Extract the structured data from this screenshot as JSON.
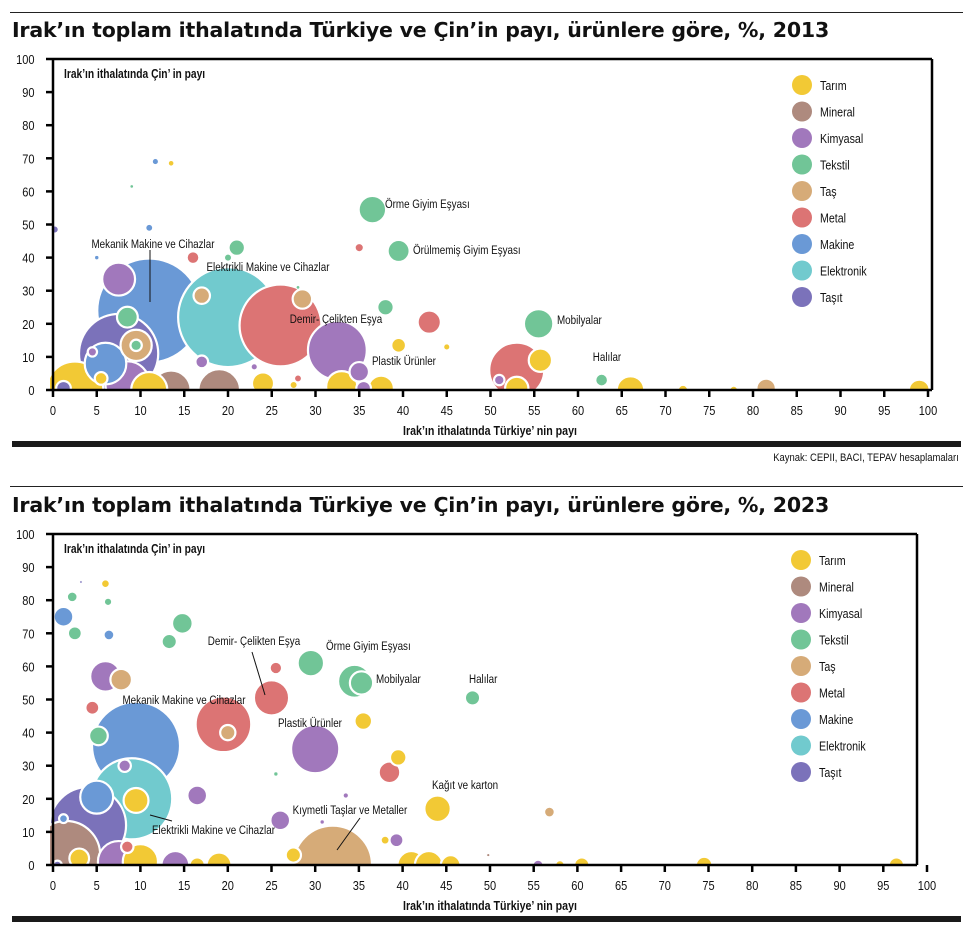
{
  "categories": [
    {
      "name": "Tarım",
      "color": "#F2C935"
    },
    {
      "name": "Mineral",
      "color": "#AE8A7E"
    },
    {
      "name": "Kimyasal",
      "color": "#A178BC"
    },
    {
      "name": "Tekstil",
      "color": "#71C597"
    },
    {
      "name": "Taş",
      "color": "#D6AB78"
    },
    {
      "name": "Metal",
      "color": "#DC7474"
    },
    {
      "name": "Makine",
      "color": "#6A99D6"
    },
    {
      "name": "Elektronik",
      "color": "#71CACE"
    },
    {
      "name": "Taşıt",
      "color": "#7B72BA"
    }
  ],
  "source": "Kaynak: CEPII, BACI, TEPAV hesaplamaları",
  "chart_data": [
    {
      "type": "scatter",
      "title": "Irak’ın toplam ithalatında Türkiye ve Çin’in payı, ürünlere göre, %, 2013",
      "xlabel": "Irak’ın ithalatında Türkiye’ nin payı",
      "ylabel": "Irak’ın ithalatında Çin’ in payı",
      "xlim": [
        0,
        100
      ],
      "ylim": [
        0,
        100
      ],
      "xticks": [
        "0",
        "5",
        "10",
        "15",
        "20",
        "25",
        "30",
        "35",
        "40",
        "45",
        "50",
        "55",
        "60",
        "65",
        "70",
        "75",
        "80",
        "85",
        "90",
        "95",
        "100"
      ],
      "yticks": [
        "0",
        "10",
        "20",
        "30",
        "40",
        "50",
        "60",
        "70",
        "80",
        "90",
        "100"
      ],
      "grid": false,
      "legend": "top-right",
      "size_note": "bubble size proportional to import value (relative units)",
      "points": [
        {
          "x": 11,
          "y": 24,
          "size": 100,
          "cat": "Makine"
        },
        {
          "x": 20,
          "y": 22,
          "size": 92,
          "cat": "Elektronik"
        },
        {
          "x": 26,
          "y": 19.5,
          "size": 62,
          "cat": "Metal"
        },
        {
          "x": 7.5,
          "y": 11,
          "size": 58,
          "cat": "Taşıt"
        },
        {
          "x": 32.5,
          "y": 12,
          "size": 32,
          "cat": "Kimyasal"
        },
        {
          "x": 53,
          "y": 6,
          "size": 28,
          "cat": "Metal"
        },
        {
          "x": 6,
          "y": 8,
          "size": 16,
          "cat": "Makine"
        },
        {
          "x": 9.5,
          "y": 13.5,
          "size": 9,
          "cat": "Taş"
        },
        {
          "x": 9.5,
          "y": 13.5,
          "size": 1.2,
          "cat": "Tekstil"
        },
        {
          "x": 7.5,
          "y": 33.5,
          "size": 10,
          "cat": "Kimyasal"
        },
        {
          "x": 8.5,
          "y": 22,
          "size": 4,
          "cat": "Tekstil"
        },
        {
          "x": 8.5,
          "y": 2,
          "size": 18,
          "cat": "Kimyasal"
        },
        {
          "x": 2.5,
          "y": 0,
          "size": 30,
          "cat": "Tarım"
        },
        {
          "x": 11,
          "y": 0,
          "size": 12,
          "cat": "Tarım"
        },
        {
          "x": 13.5,
          "y": 0,
          "size": 14,
          "cat": "Mineral"
        },
        {
          "x": 19,
          "y": 0,
          "size": 16,
          "cat": "Mineral"
        },
        {
          "x": 24,
          "y": 2,
          "size": 4.5,
          "cat": "Tarım"
        },
        {
          "x": 5.5,
          "y": 3.5,
          "size": 1.5,
          "cat": "Tarım"
        },
        {
          "x": 1.2,
          "y": 0.5,
          "size": 2,
          "cat": "Taşıt"
        },
        {
          "x": 4.5,
          "y": 11.5,
          "size": 0.8,
          "cat": "Kimyasal"
        },
        {
          "x": 36.5,
          "y": 54.5,
          "size": 7,
          "cat": "Tekstil"
        },
        {
          "x": 39.5,
          "y": 42,
          "size": 4.5,
          "cat": "Tekstil"
        },
        {
          "x": 55.5,
          "y": 20,
          "size": 8,
          "cat": "Tekstil"
        },
        {
          "x": 55.7,
          "y": 9,
          "size": 5,
          "cat": "Tarım"
        },
        {
          "x": 43,
          "y": 20.5,
          "size": 5,
          "cat": "Metal"
        },
        {
          "x": 39.5,
          "y": 13.5,
          "size": 2,
          "cat": "Tarım"
        },
        {
          "x": 45,
          "y": 13,
          "size": 0.3,
          "cat": "Tarım"
        },
        {
          "x": 38,
          "y": 25,
          "size": 2.5,
          "cat": "Tekstil"
        },
        {
          "x": 35,
          "y": 43,
          "size": 0.8,
          "cat": "Metal"
        },
        {
          "x": 21,
          "y": 43,
          "size": 2.5,
          "cat": "Tekstil"
        },
        {
          "x": 20,
          "y": 40,
          "size": 0.4,
          "cat": "Tekstil"
        },
        {
          "x": 16,
          "y": 40,
          "size": 1.5,
          "cat": "Metal"
        },
        {
          "x": 17,
          "y": 28.5,
          "size": 2.5,
          "cat": "Taş"
        },
        {
          "x": 28.5,
          "y": 27.5,
          "size": 3.5,
          "cat": "Taş"
        },
        {
          "x": 28,
          "y": 31,
          "size": 0.1,
          "cat": "Tekstil"
        },
        {
          "x": 17,
          "y": 8.5,
          "size": 1.5,
          "cat": "Kimyasal"
        },
        {
          "x": 23,
          "y": 7,
          "size": 0.3,
          "cat": "Kimyasal"
        },
        {
          "x": 28,
          "y": 3.5,
          "size": 0.6,
          "cat": "Metal"
        },
        {
          "x": 27.5,
          "y": 1.5,
          "size": 0.4,
          "cat": "Tarım"
        },
        {
          "x": 35,
          "y": 5.5,
          "size": 3.5,
          "cat": "Kimyasal"
        },
        {
          "x": 33,
          "y": 1,
          "size": 9,
          "cat": "Tarım"
        },
        {
          "x": 37.5,
          "y": 0.5,
          "size": 6,
          "cat": "Tarım"
        },
        {
          "x": 35.5,
          "y": 0.5,
          "size": 2,
          "cat": "Kimyasal"
        },
        {
          "x": 51,
          "y": 3,
          "size": 1,
          "cat": "Kimyasal"
        },
        {
          "x": 53,
          "y": 0.5,
          "size": 5,
          "cat": "Tarım"
        },
        {
          "x": 62.7,
          "y": 3,
          "size": 1.5,
          "cat": "Tekstil"
        },
        {
          "x": 66,
          "y": 0,
          "size": 7,
          "cat": "Tarım"
        },
        {
          "x": 72,
          "y": 0,
          "size": 1,
          "cat": "Tarım"
        },
        {
          "x": 77.8,
          "y": 0,
          "size": 0.7,
          "cat": "Tarım"
        },
        {
          "x": 81.5,
          "y": 0.5,
          "size": 3.5,
          "cat": "Taş"
        },
        {
          "x": 99,
          "y": 0,
          "size": 4,
          "cat": "Tarım"
        },
        {
          "x": 0.2,
          "y": 48.5,
          "size": 0.4,
          "cat": "Taşıt"
        },
        {
          "x": 11,
          "y": 49,
          "size": 0.6,
          "cat": "Makine"
        },
        {
          "x": 5,
          "y": 40,
          "size": 0.15,
          "cat": "Makine"
        },
        {
          "x": 11.7,
          "y": 69,
          "size": 0.3,
          "cat": "Makine"
        },
        {
          "x": 13.5,
          "y": 68.5,
          "size": 0.25,
          "cat": "Tarım"
        },
        {
          "x": 9,
          "y": 61.5,
          "size": 0.1,
          "cat": "Tekstil"
        }
      ],
      "annotations": [
        {
          "text": "Mekanik Makine ve Cihazlar",
          "x": 11,
          "y": 24
        },
        {
          "text": "Elektrikli Makine ve Cihazlar",
          "x": 20,
          "y": 22
        },
        {
          "text": "Demir- Çelikten Eşya",
          "x": 26,
          "y": 19.5
        },
        {
          "text": "Örme Giyim Eşyası",
          "x": 36.5,
          "y": 54.5
        },
        {
          "text": "Örülmemiş Giyim Eşyası",
          "x": 39.5,
          "y": 42
        },
        {
          "text": "Plastik Ürünler",
          "x": 35,
          "y": 5.5
        },
        {
          "text": "Mobilyalar",
          "x": 55.5,
          "y": 20
        },
        {
          "text": "Halılar",
          "x": 62.7,
          "y": 3
        }
      ]
    },
    {
      "type": "scatter",
      "title": "Irak’ın toplam ithalatında Türkiye ve Çin’in payı, ürünlere göre, %, 2023",
      "xlabel": "Irak’ın ithalatında Türkiye’ nin payı",
      "ylabel": "Irak’ın ithalatında Çin’ in payı",
      "xlim": [
        0,
        100
      ],
      "ylim": [
        0,
        100
      ],
      "xticks": [
        "0",
        "5",
        "10",
        "15",
        "20",
        "25",
        "30",
        "35",
        "40",
        "45",
        "50",
        "55",
        "60",
        "65",
        "70",
        "75",
        "80",
        "85",
        "90",
        "95",
        "100"
      ],
      "yticks": [
        "0",
        "10",
        "20",
        "30",
        "40",
        "50",
        "60",
        "70",
        "80",
        "90",
        "100"
      ],
      "grid": false,
      "legend": "top-right",
      "size_note": "bubble size proportional to import value (relative units)",
      "points": [
        {
          "x": 9.5,
          "y": 36,
          "size": 100,
          "cat": "Makine"
        },
        {
          "x": 9,
          "y": 20,
          "size": 85,
          "cat": "Elektronik"
        },
        {
          "x": 4,
          "y": 12,
          "size": 75,
          "cat": "Taşıt"
        },
        {
          "x": 1.5,
          "y": 3,
          "size": 60,
          "cat": "Mineral"
        },
        {
          "x": 32,
          "y": 0,
          "size": 80,
          "cat": "Taş"
        },
        {
          "x": 19.5,
          "y": 42.5,
          "size": 40,
          "cat": "Metal"
        },
        {
          "x": 30,
          "y": 35,
          "size": 30,
          "cat": "Kimyasal"
        },
        {
          "x": 25,
          "y": 50.5,
          "size": 16,
          "cat": "Metal"
        },
        {
          "x": 20,
          "y": 40,
          "size": 3,
          "cat": "Taş"
        },
        {
          "x": 5,
          "y": 20.5,
          "size": 14,
          "cat": "Makine"
        },
        {
          "x": 9.5,
          "y": 19.5,
          "size": 8,
          "cat": "Tarım"
        },
        {
          "x": 8.2,
          "y": 30,
          "size": 2,
          "cat": "Kimyasal"
        },
        {
          "x": 7.5,
          "y": 1,
          "size": 22,
          "cat": "Kimyasal"
        },
        {
          "x": 10,
          "y": 1,
          "size": 16,
          "cat": "Tarım"
        },
        {
          "x": 14,
          "y": 0,
          "size": 10,
          "cat": "Kimyasal"
        },
        {
          "x": 16.5,
          "y": 21,
          "size": 5,
          "cat": "Kimyasal"
        },
        {
          "x": 19,
          "y": 0,
          "size": 8,
          "cat": "Tarım"
        },
        {
          "x": 16.5,
          "y": 0,
          "size": 3,
          "cat": "Tarım"
        },
        {
          "x": 8.5,
          "y": 5.5,
          "size": 2,
          "cat": "Metal"
        },
        {
          "x": 1.2,
          "y": 14,
          "size": 1,
          "cat": "Makine"
        },
        {
          "x": 3,
          "y": 2,
          "size": 5,
          "cat": "Tarım"
        },
        {
          "x": 0.5,
          "y": 0,
          "size": 1,
          "cat": "Taşıt"
        },
        {
          "x": 6,
          "y": 57,
          "size": 12,
          "cat": "Kimyasal"
        },
        {
          "x": 7.8,
          "y": 56,
          "size": 6,
          "cat": "Taş"
        },
        {
          "x": 5.2,
          "y": 39,
          "size": 4.5,
          "cat": "Tekstil"
        },
        {
          "x": 4.5,
          "y": 47.5,
          "size": 2.5,
          "cat": "Metal"
        },
        {
          "x": 1.2,
          "y": 75,
          "size": 5,
          "cat": "Makine"
        },
        {
          "x": 2.5,
          "y": 70,
          "size": 2.5,
          "cat": "Tekstil"
        },
        {
          "x": 2.2,
          "y": 81,
          "size": 1.5,
          "cat": "Tekstil"
        },
        {
          "x": 6,
          "y": 85,
          "size": 1,
          "cat": "Tarım"
        },
        {
          "x": 6.3,
          "y": 79.5,
          "size": 0.6,
          "cat": "Tekstil"
        },
        {
          "x": 6.4,
          "y": 69.5,
          "size": 1.5,
          "cat": "Makine"
        },
        {
          "x": 3.2,
          "y": 85.5,
          "size": 0.05,
          "cat": "Taşıt"
        },
        {
          "x": 14.8,
          "y": 73,
          "size": 5.5,
          "cat": "Tekstil"
        },
        {
          "x": 13.3,
          "y": 67.5,
          "size": 3,
          "cat": "Tekstil"
        },
        {
          "x": 25.5,
          "y": 59.5,
          "size": 2,
          "cat": "Metal"
        },
        {
          "x": 29.5,
          "y": 61,
          "size": 9,
          "cat": "Tekstil"
        },
        {
          "x": 34.5,
          "y": 55.5,
          "size": 14,
          "cat": "Tekstil"
        },
        {
          "x": 35.3,
          "y": 55,
          "size": 7,
          "cat": "Tekstil"
        },
        {
          "x": 35.5,
          "y": 43.5,
          "size": 4,
          "cat": "Tarım"
        },
        {
          "x": 48,
          "y": 50.5,
          "size": 3,
          "cat": "Tekstil"
        },
        {
          "x": 38.5,
          "y": 28,
          "size": 6,
          "cat": "Metal"
        },
        {
          "x": 39.5,
          "y": 32.5,
          "size": 3.5,
          "cat": "Tarım"
        },
        {
          "x": 44,
          "y": 17,
          "size": 9,
          "cat": "Tarım"
        },
        {
          "x": 25.5,
          "y": 27.5,
          "size": 0.2,
          "cat": "Tekstil"
        },
        {
          "x": 26,
          "y": 13.5,
          "size": 5,
          "cat": "Kimyasal"
        },
        {
          "x": 33.5,
          "y": 21,
          "size": 0.3,
          "cat": "Kimyasal"
        },
        {
          "x": 30.8,
          "y": 13,
          "size": 0.2,
          "cat": "Kimyasal"
        },
        {
          "x": 38,
          "y": 7.5,
          "size": 0.7,
          "cat": "Tarım"
        },
        {
          "x": 39.3,
          "y": 7.5,
          "size": 2.5,
          "cat": "Kimyasal"
        },
        {
          "x": 27.5,
          "y": 3,
          "size": 3,
          "cat": "Tarım"
        },
        {
          "x": 41,
          "y": 0,
          "size": 10,
          "cat": "Tarım"
        },
        {
          "x": 43,
          "y": 0,
          "size": 10,
          "cat": "Tarım"
        },
        {
          "x": 45.5,
          "y": 0,
          "size": 5,
          "cat": "Tarım"
        },
        {
          "x": 49.8,
          "y": 3,
          "size": 0.1,
          "cat": "Mineral"
        },
        {
          "x": 55.5,
          "y": 0,
          "size": 1.5,
          "cat": "Kimyasal"
        },
        {
          "x": 58,
          "y": 0,
          "size": 1.2,
          "cat": "Tarım"
        },
        {
          "x": 60.5,
          "y": 0,
          "size": 3,
          "cat": "Tarım"
        },
        {
          "x": 74.5,
          "y": 0,
          "size": 3.5,
          "cat": "Tarım"
        },
        {
          "x": 96.5,
          "y": 0,
          "size": 3,
          "cat": "Tarım"
        },
        {
          "x": 56.8,
          "y": 16,
          "size": 1.5,
          "cat": "Taş"
        }
      ],
      "annotations": [
        {
          "text": "Demir- Çelikten Eşya",
          "x": 25,
          "y": 50.5
        },
        {
          "text": "Örme Giyim Eşyası",
          "x": 29.5,
          "y": 61
        },
        {
          "text": "Mobilyalar",
          "x": 35.3,
          "y": 55
        },
        {
          "text": "Halılar",
          "x": 48,
          "y": 50.5
        },
        {
          "text": "Mekanik Makine ve Cihazlar",
          "x": 9.5,
          "y": 36
        },
        {
          "text": "Plastik Ürünler",
          "x": 30,
          "y": 35
        },
        {
          "text": "Kağıt ve karton",
          "x": 44,
          "y": 17
        },
        {
          "text": "Kıymetli Taşlar ve Metaller",
          "x": 32,
          "y": 0
        },
        {
          "text": "Elektrikli Makine ve Cihazlar",
          "x": 9,
          "y": 20
        }
      ]
    }
  ]
}
